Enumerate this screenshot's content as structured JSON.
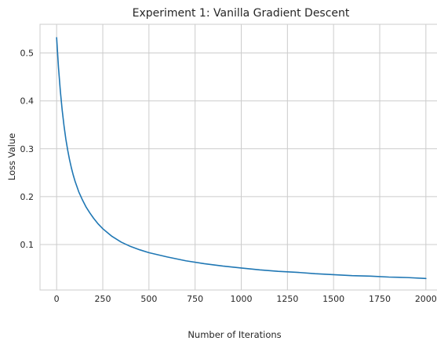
{
  "chart_data": {
    "type": "line",
    "title": "Experiment 1: Vanilla Gradient Descent",
    "xlabel": "Number of Iterations",
    "ylabel": "Loss Value",
    "xlim": [
      -90,
      2090
    ],
    "ylim": [
      0.005,
      0.56
    ],
    "xticks": [
      0,
      250,
      500,
      750,
      1000,
      1250,
      1500,
      1750,
      2000
    ],
    "yticks": [
      0.1,
      0.2,
      0.3,
      0.4,
      0.5
    ],
    "grid": true,
    "colors": {
      "line": "#1f77b4",
      "grid": "#cccccc"
    },
    "series": [
      {
        "x": [
          0,
          10,
          20,
          30,
          40,
          50,
          60,
          70,
          80,
          90,
          100,
          120,
          140,
          160,
          180,
          200,
          225,
          250,
          275,
          300,
          350,
          400,
          450,
          500,
          600,
          700,
          800,
          900,
          1000,
          1100,
          1200,
          1300,
          1400,
          1500,
          1600,
          1700,
          1800,
          1900,
          2000
        ],
        "values": [
          0.532,
          0.47,
          0.421,
          0.381,
          0.348,
          0.32,
          0.297,
          0.277,
          0.26,
          0.245,
          0.232,
          0.21,
          0.193,
          0.178,
          0.166,
          0.155,
          0.143,
          0.133,
          0.125,
          0.117,
          0.105,
          0.096,
          0.089,
          0.083,
          0.074,
          0.066,
          0.06,
          0.055,
          0.051,
          0.047,
          0.044,
          0.042,
          0.039,
          0.037,
          0.035,
          0.034,
          0.032,
          0.031,
          0.029
        ]
      }
    ]
  }
}
